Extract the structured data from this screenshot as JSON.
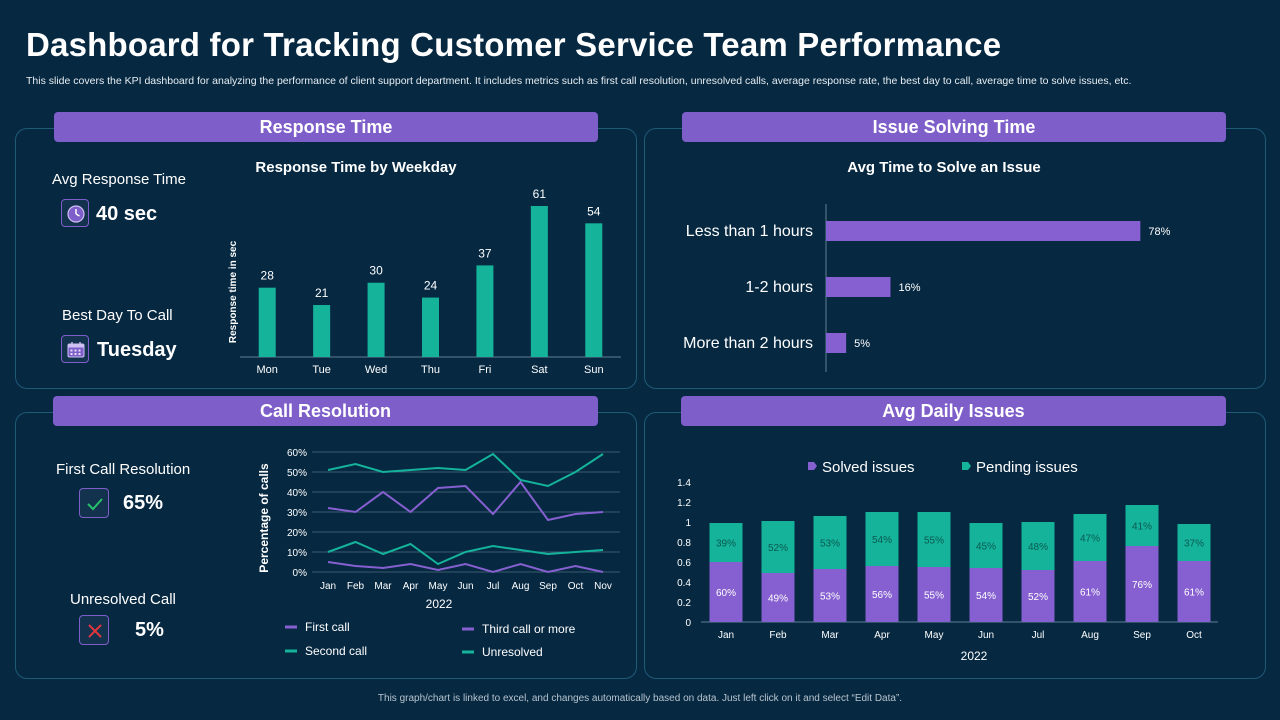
{
  "title": "Dashboard for Tracking Customer Service Team Performance",
  "subtitle": "This slide covers the KPI  dashboard for analyzing the performance of client support department.  It includes metrics such as first call resolution, unresolved calls, average response rate, the best day to call, average time  to solve issues, etc.",
  "footer": "This graph/chart is linked to excel, and changes automatically based on data.  Just left click on it and select “Edit Data”.",
  "colors": {
    "background": "#062841",
    "accent": "#7e5ec9",
    "teal": "#14b39a",
    "purple": "#8660d0",
    "green_check": "#27c26b",
    "red_x": "#e0363e"
  },
  "response_panel": {
    "header": "Response Time",
    "avg_label": "Avg Response Time",
    "avg_value": "40 sec",
    "avg_icon": "clock-icon",
    "best_day_label": "Best Day To Call",
    "best_day_value": "Tuesday",
    "best_day_icon": "calendar-icon"
  },
  "issue_panel": {
    "header": "Issue Solving Time"
  },
  "call_panel": {
    "header": "Call Resolution",
    "fcr_label": "First Call Resolution",
    "fcr_value": "65%",
    "fcr_icon": "check-icon",
    "unresolved_label": "Unresolved Call",
    "unresolved_value": "5%",
    "unresolved_icon": "x-icon"
  },
  "daily_panel": {
    "header": "Avg Daily Issues"
  },
  "chart_data": [
    {
      "id": "response_time",
      "type": "bar",
      "title": "Response Time by Weekday",
      "xlabel": "",
      "ylabel": "Response time in sec",
      "categories": [
        "Mon",
        "Tue",
        "Wed",
        "Thu",
        "Fri",
        "Sat",
        "Sun"
      ],
      "values": [
        28,
        21,
        30,
        24,
        37,
        61,
        54
      ],
      "ylim": [
        0,
        61
      ]
    },
    {
      "id": "issue_solving",
      "type": "bar",
      "orientation": "horizontal",
      "title": "Avg Time to Solve an Issue",
      "categories": [
        "Less  than 1 hours",
        "1-2 hours",
        "More than 2 hours"
      ],
      "values": [
        78,
        16,
        5
      ],
      "value_labels": [
        "78%",
        "16%",
        "5%"
      ],
      "xlim": [
        0,
        100
      ]
    },
    {
      "id": "call_resolution",
      "type": "line",
      "title": "",
      "xlabel": "2022",
      "ylabel": "Percentage of calls",
      "categories": [
        "Jan",
        "Feb",
        "Mar",
        "Apr",
        "May",
        "Jun",
        "Jul",
        "Aug",
        "Sep",
        "Oct",
        "Nov"
      ],
      "y_ticks": [
        "0%",
        "10%",
        "20%",
        "30%",
        "40%",
        "50%",
        "60%"
      ],
      "ylim": [
        0,
        60
      ],
      "series": [
        {
          "name": "First call",
          "color": "#8660d0",
          "values": [
            5,
            3,
            2,
            4,
            1,
            4,
            0,
            4,
            0,
            3,
            0
          ]
        },
        {
          "name": "Third call or more",
          "color": "#8660d0",
          "values": [
            32,
            30,
            40,
            30,
            42,
            43,
            29,
            45,
            26,
            29,
            30
          ]
        },
        {
          "name": "Second call",
          "color": "#14b39a",
          "values": [
            10,
            15,
            9,
            14,
            4,
            10,
            13,
            11,
            9,
            10,
            11
          ]
        },
        {
          "name": "Unresolved",
          "color": "#14b39a",
          "values": [
            51,
            54,
            50,
            51,
            52,
            51,
            59,
            46,
            43,
            50,
            59
          ]
        }
      ]
    },
    {
      "id": "daily_issues",
      "type": "bar",
      "stacked": true,
      "title": "",
      "xlabel": "2022",
      "ylabel": "",
      "categories": [
        "Jan",
        "Feb",
        "Mar",
        "Apr",
        "May",
        "Jun",
        "Jul",
        "Aug",
        "Sep",
        "Oct"
      ],
      "y_ticks": [
        "0",
        "0.2",
        "0.4",
        "0.6",
        "0.8",
        "1",
        "1.2",
        "1.4"
      ],
      "ylim": [
        0,
        1.4
      ],
      "series": [
        {
          "name": "Solved issues",
          "color": "#8660d0",
          "values": [
            0.6,
            0.49,
            0.53,
            0.56,
            0.55,
            0.54,
            0.52,
            0.61,
            0.76,
            0.61
          ],
          "labels": [
            "60%",
            "49%",
            "53%",
            "56%",
            "55%",
            "54%",
            "52%",
            "61%",
            "76%",
            "61%"
          ]
        },
        {
          "name": "Pending issues",
          "color": "#14b39a",
          "values": [
            0.39,
            0.52,
            0.53,
            0.54,
            0.55,
            0.45,
            0.48,
            0.47,
            0.41,
            0.37
          ],
          "labels": [
            "39%",
            "52%",
            "53%",
            "54%",
            "55%",
            "45%",
            "48%",
            "47%",
            "41%",
            "37%"
          ]
        }
      ]
    }
  ]
}
